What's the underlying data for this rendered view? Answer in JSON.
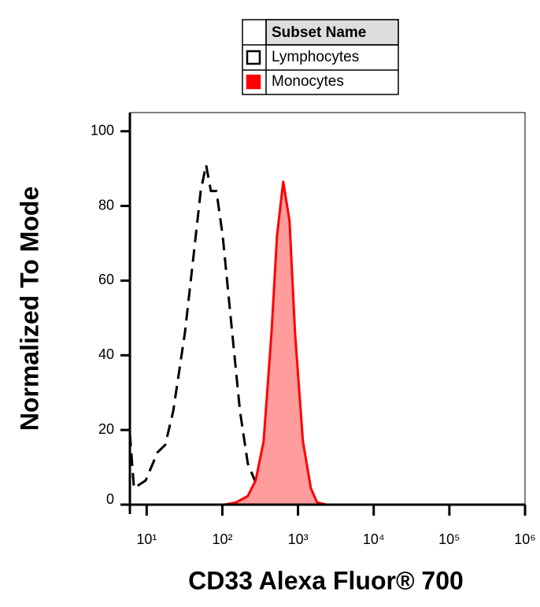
{
  "chart_data": {
    "type": "histogram-overlay",
    "xlabel": "CD33 Alexa Fluor® 700",
    "ylabel": "Normalized To Mode",
    "legend_title": "Subset Name",
    "xscale": "log",
    "xlim": [
      6,
      1000000
    ],
    "ylim": [
      0,
      105
    ],
    "xticks": [
      {
        "value": 10,
        "label": "10¹"
      },
      {
        "value": 100,
        "label": "10²"
      },
      {
        "value": 1000,
        "label": "10³"
      },
      {
        "value": 10000,
        "label": "10⁴"
      },
      {
        "value": 100000,
        "label": "10⁵"
      },
      {
        "value": 1000000,
        "label": "10⁶"
      }
    ],
    "yticks": [
      0,
      20,
      40,
      60,
      80,
      100
    ],
    "series": [
      {
        "name": "Lymphocytes",
        "color": "#000000",
        "fill": "none",
        "dash": true,
        "x": [
          6,
          6.8,
          9.7,
          13.9,
          17.6,
          22.4,
          32,
          40.8,
          51.8,
          61,
          70.6,
          83.4,
          101,
          135,
          171,
          217,
          311,
          446,
          638,
          18200,
          1000000
        ],
        "values": [
          19,
          4.4,
          6.5,
          14,
          16,
          25,
          46,
          65,
          84,
          91,
          84,
          84,
          72,
          46,
          25,
          11,
          3.4,
          0.8,
          0,
          0,
          0
        ]
      },
      {
        "name": "Monocytes",
        "color": "#ff0000",
        "fill": "#ff9c9c",
        "dash": false,
        "x": [
          6,
          106,
          152,
          217,
          276,
          351,
          446,
          527,
          638,
          773,
          914,
          1161,
          1476,
          1786,
          2382,
          1000000
        ],
        "values": [
          0,
          0,
          0.6,
          2.3,
          6.5,
          17,
          46,
          72,
          86.5,
          76,
          46,
          17,
          4.4,
          0.6,
          0,
          0
        ]
      }
    ]
  }
}
